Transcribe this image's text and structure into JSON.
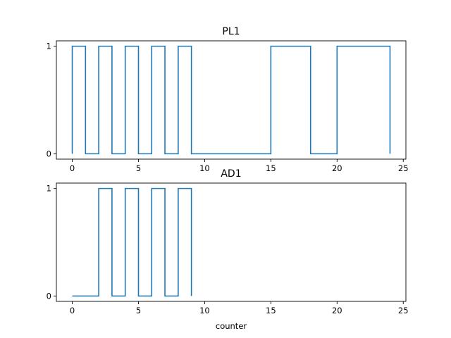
{
  "chart_data": [
    {
      "type": "line",
      "drawstyle": "steps-post",
      "title": "PL1",
      "xlabel": "",
      "ylabel": "",
      "xlim": [
        -1.2,
        25.2
      ],
      "ylim": [
        -0.05,
        1.05
      ],
      "xticks": [
        0,
        5,
        10,
        15,
        20,
        25
      ],
      "xtick_labels": [
        "0",
        "5",
        "10",
        "15",
        "20",
        "25"
      ],
      "yticks": [
        0,
        1
      ],
      "ytick_labels": [
        "0",
        "1"
      ],
      "series": [
        {
          "name": "PL1",
          "color": "#1f77b4",
          "x": [
            0,
            0,
            1,
            2,
            3,
            4,
            5,
            6,
            7,
            8,
            9,
            15,
            18,
            20,
            24,
            24
          ],
          "y": [
            0,
            1,
            0,
            1,
            0,
            1,
            0,
            1,
            0,
            1,
            0,
            1,
            0,
            1,
            1,
            0
          ]
        }
      ]
    },
    {
      "type": "line",
      "drawstyle": "steps-post",
      "title": "AD1",
      "xlabel": "counter",
      "ylabel": "",
      "xlim": [
        -1.2,
        25.2
      ],
      "ylim": [
        -0.05,
        1.05
      ],
      "xticks": [
        0,
        5,
        10,
        15,
        20,
        25
      ],
      "xtick_labels": [
        "0",
        "5",
        "10",
        "15",
        "20",
        "25"
      ],
      "yticks": [
        0,
        1
      ],
      "ytick_labels": [
        "0",
        "1"
      ],
      "series": [
        {
          "name": "AD1",
          "color": "#1f77b4",
          "x": [
            0,
            2,
            3,
            4,
            5,
            6,
            7,
            8,
            9,
            9
          ],
          "y": [
            0,
            1,
            0,
            1,
            0,
            1,
            0,
            1,
            1,
            0
          ]
        }
      ]
    }
  ]
}
